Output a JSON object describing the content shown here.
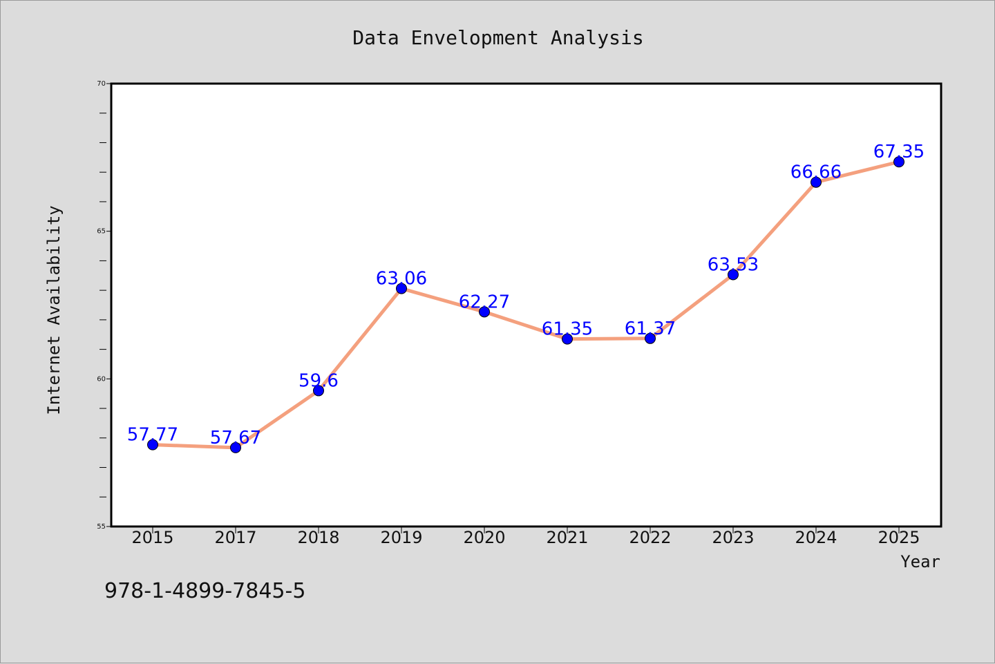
{
  "isbn_text": "978-1-4899-7845-5",
  "colors": {
    "line": "#f4a07e",
    "marker": "#0000ff",
    "label": "#0000ff",
    "plot_bg": "#ffffff",
    "page_bg": "#dcdcdc"
  },
  "chart_data": {
    "type": "line",
    "title": "Data Envelopment Analysis",
    "xlabel": "Year",
    "ylabel": "Internet Availability",
    "categories": [
      "2015",
      "2017",
      "2018",
      "2019",
      "2020",
      "2021",
      "2022",
      "2023",
      "2024",
      "2025"
    ],
    "series": [
      {
        "values": [
          57.77,
          57.67,
          59.6,
          63.06,
          62.27,
          61.35,
          61.37,
          63.53,
          66.66,
          67.35
        ],
        "labels": [
          "57.77",
          "57.67",
          "59.6",
          "63.06",
          "62.27",
          "61.35",
          "61.37",
          "63.53",
          "66.66",
          "67.35"
        ]
      }
    ],
    "ylim": [
      55,
      70
    ],
    "yticks": [
      "55",
      "60",
      "65",
      "70"
    ],
    "grid": false,
    "legend": "none"
  }
}
